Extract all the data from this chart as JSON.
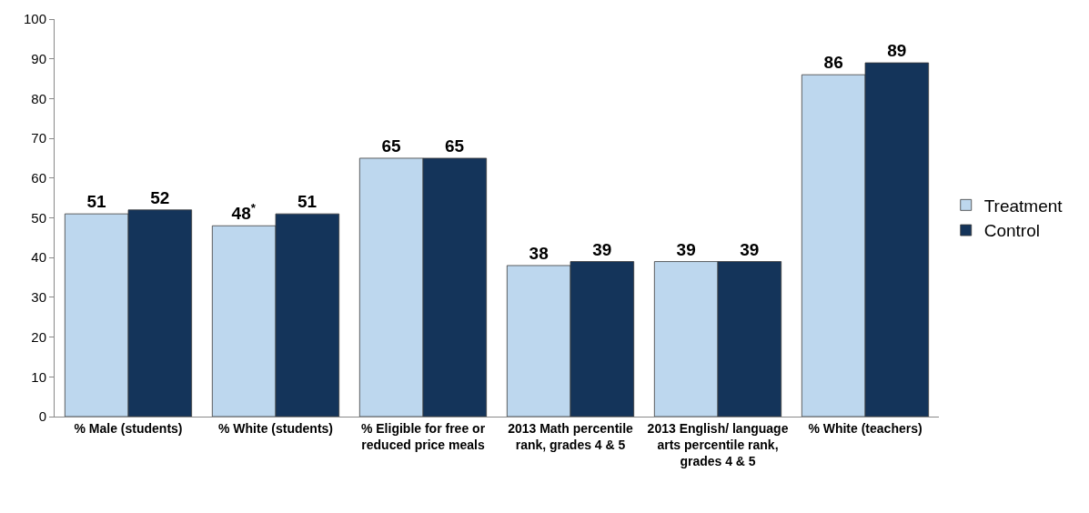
{
  "chart_data": {
    "type": "bar",
    "categories": [
      "% Male (students)",
      "% White (students)",
      "% Eligible for free or reduced price meals",
      "2013 Math percentile rank, grades 4 & 5",
      "2013 English/ language arts percentile rank, grades 4 & 5",
      "% White (teachers)"
    ],
    "series": [
      {
        "name": "Treatment",
        "color": "#bdd7ee",
        "values": [
          51,
          48,
          65,
          38,
          39,
          86
        ],
        "value_labels": [
          "51",
          "48$^{*}$",
          "65",
          "38",
          "39",
          "86"
        ]
      },
      {
        "name": "Control",
        "color": "#14345a",
        "values": [
          52,
          51,
          65,
          39,
          39,
          89
        ],
        "value_labels": [
          "52",
          "51",
          "65",
          "39",
          "39",
          "89"
        ]
      }
    ],
    "ylim": [
      0,
      100
    ],
    "yticks": [
      0,
      10,
      20,
      30,
      40,
      50,
      60,
      70,
      80,
      90,
      100
    ],
    "legend": "right"
  }
}
